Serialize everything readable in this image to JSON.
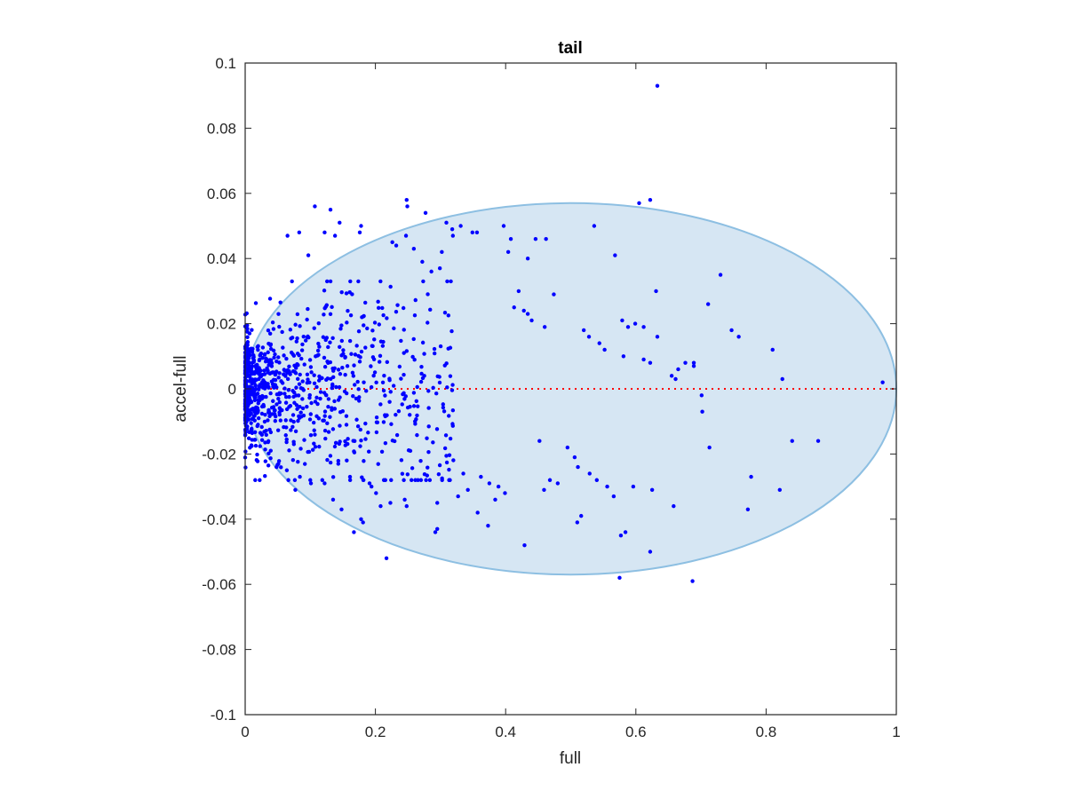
{
  "chart_data": {
    "type": "scatter",
    "title": "tail",
    "xlabel": "full",
    "ylabel": "accel-full",
    "xlim": [
      0,
      1
    ],
    "ylim": [
      -0.1,
      0.1
    ],
    "xticks": [
      "0",
      "0.2",
      "0.4",
      "0.6",
      "0.8",
      "1"
    ],
    "yticks": [
      "-0.1",
      "-0.08",
      "-0.06",
      "-0.04",
      "-0.02",
      "0",
      "0.02",
      "0.04",
      "0.06",
      "0.08",
      "0.1"
    ],
    "grid": false,
    "legend": "none",
    "colors": {
      "points": "#0000ff",
      "reference_line": "#ff0000",
      "ellipse_fill": "#d6e6f3",
      "ellipse_edge": "#8dbfe2",
      "axes": "#262626"
    },
    "reference_line": {
      "y": 0,
      "style": "dotted"
    },
    "ellipse": {
      "cx": 0.5,
      "cy": 0.0,
      "rx": 0.5,
      "ry": 0.057
    },
    "series": [
      {
        "marker": "dot",
        "x": [
          0.633,
          0.605,
          0.622,
          0.248,
          0.249,
          0.107,
          0.131,
          0.277,
          0.309,
          0.331,
          0.356,
          0.065,
          0.083,
          0.097,
          0.122,
          0.138,
          0.145,
          0.178,
          0.176,
          0.226,
          0.232,
          0.247,
          0.259,
          0.272,
          0.286,
          0.299,
          0.302,
          0.318,
          0.319,
          0.349,
          0.397,
          0.404,
          0.408,
          0.434,
          0.446,
          0.462,
          0.536,
          0.568,
          0.73,
          0.631,
          0.711,
          0.747,
          0.758,
          0.81,
          0.588,
          0.579,
          0.599,
          0.612,
          0.633,
          0.676,
          0.689,
          0.689,
          0.701,
          0.655,
          0.661,
          0.825,
          0.979,
          0.42,
          0.474,
          0.413,
          0.428,
          0.434,
          0.44,
          0.46,
          0.52,
          0.528,
          0.544,
          0.552,
          0.581,
          0.612,
          0.622,
          0.665,
          0.702,
          0.713,
          0.84,
          0.88,
          0.452,
          0.495,
          0.506,
          0.511,
          0.529,
          0.54,
          0.556,
          0.468,
          0.48,
          0.389,
          0.399,
          0.375,
          0.357,
          0.342,
          0.295,
          0.292,
          0.327,
          0.335,
          0.362,
          0.373,
          0.384,
          0.429,
          0.459,
          0.51,
          0.516,
          0.566,
          0.575,
          0.577,
          0.584,
          0.596,
          0.622,
          0.625,
          0.658,
          0.687,
          0.772,
          0.777,
          0.821,
          0.217,
          0.167,
          0.181,
          0.178,
          0.148,
          0.135,
          0.122,
          0.101,
          0.084,
          0.077,
          0.064,
          0.051,
          0.208,
          0.201,
          0.194,
          0.191,
          0.156,
          0.161,
          0.143,
          0.1,
          0.223,
          0.245,
          0.248,
          0.295
        ],
        "y": [
          0.093,
          0.057,
          0.058,
          0.058,
          0.056,
          0.056,
          0.055,
          0.054,
          0.051,
          0.05,
          0.048,
          0.047,
          0.048,
          0.041,
          0.048,
          0.047,
          0.051,
          0.05,
          0.048,
          0.045,
          0.044,
          0.047,
          0.043,
          0.039,
          0.036,
          0.037,
          0.042,
          0.049,
          0.047,
          0.048,
          0.05,
          0.042,
          0.046,
          0.04,
          0.046,
          0.046,
          0.05,
          0.041,
          0.035,
          0.03,
          0.026,
          0.018,
          0.016,
          0.012,
          0.019,
          0.021,
          0.02,
          0.019,
          0.016,
          0.008,
          0.008,
          0.007,
          -0.002,
          0.004,
          0.003,
          0.003,
          0.002,
          0.03,
          0.029,
          0.025,
          0.024,
          0.023,
          0.021,
          0.019,
          0.018,
          0.016,
          0.014,
          0.012,
          0.01,
          0.009,
          0.008,
          0.006,
          -0.007,
          -0.018,
          -0.016,
          -0.016,
          -0.016,
          -0.018,
          -0.021,
          -0.024,
          -0.026,
          -0.028,
          -0.03,
          -0.028,
          -0.029,
          -0.03,
          -0.032,
          -0.029,
          -0.038,
          -0.031,
          -0.035,
          -0.044,
          -0.033,
          -0.026,
          -0.027,
          -0.042,
          -0.034,
          -0.048,
          -0.031,
          -0.041,
          -0.039,
          -0.033,
          -0.058,
          -0.045,
          -0.044,
          -0.03,
          -0.05,
          -0.031,
          -0.036,
          -0.059,
          -0.037,
          -0.027,
          -0.031,
          -0.052,
          -0.044,
          -0.041,
          -0.04,
          -0.037,
          -0.034,
          -0.029,
          -0.029,
          -0.027,
          -0.031,
          -0.025,
          -0.023,
          -0.036,
          -0.032,
          -0.03,
          -0.029,
          -0.022,
          -0.027,
          -0.023,
          -0.028,
          -0.035,
          -0.034,
          -0.036,
          -0.043
        ],
        "dense_cloud": {
          "description": "dense cluster near origin",
          "x_range": [
            0,
            0.32
          ],
          "y_range": [
            -0.028,
            0.033
          ],
          "count": 900
        }
      }
    ]
  }
}
